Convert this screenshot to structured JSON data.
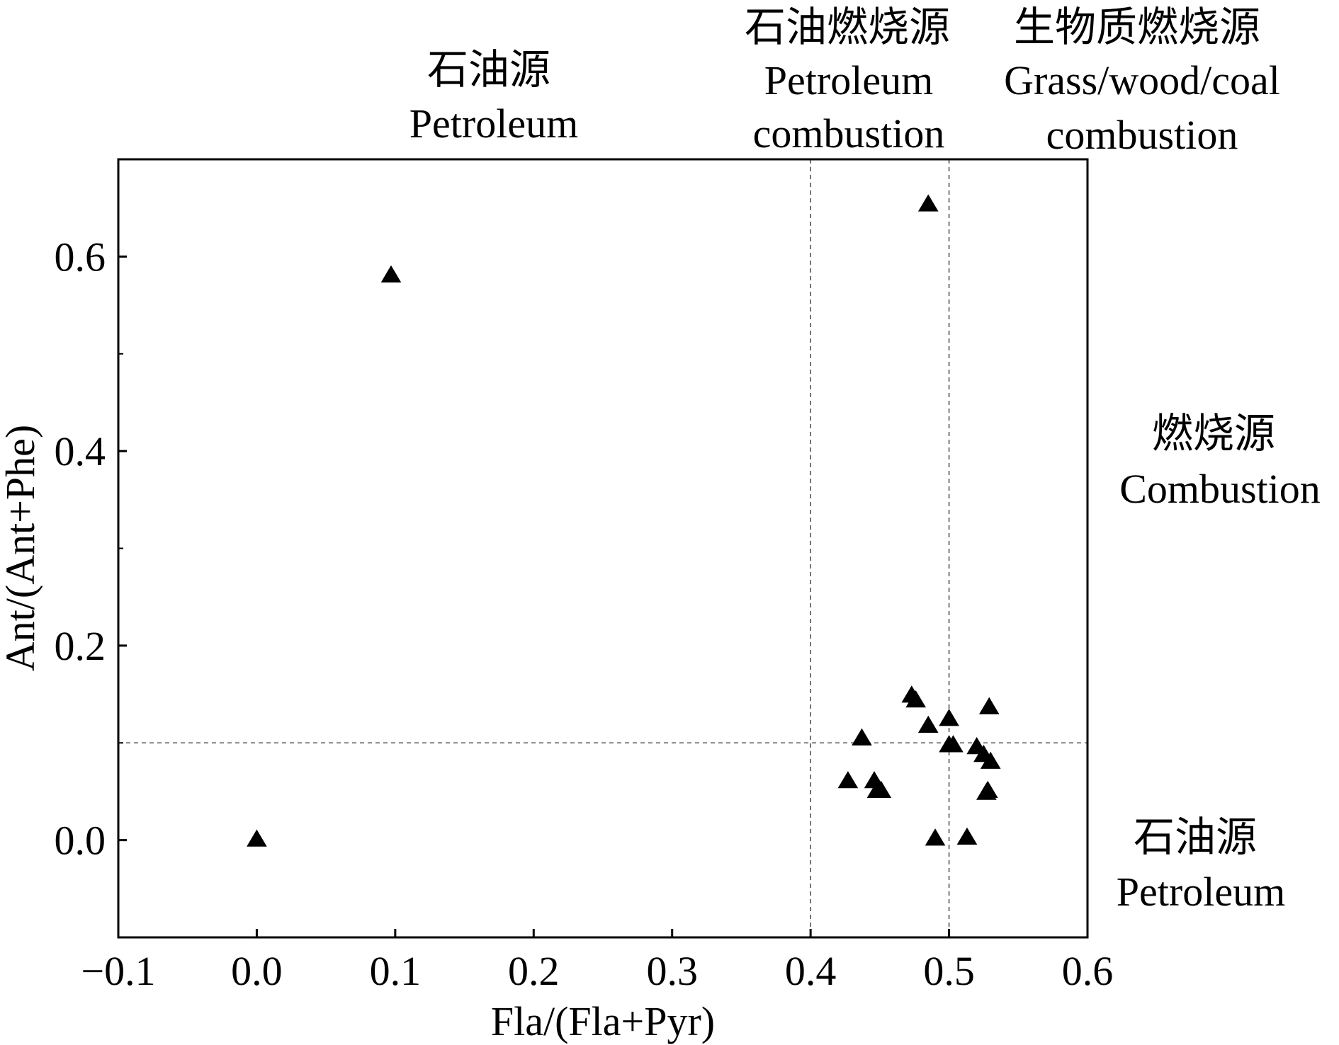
{
  "chart_data": {
    "type": "scatter",
    "xlabel": "Fla/(Fla+Pyr)",
    "ylabel": "Ant/(Ant+Phe)",
    "xlim": [
      -0.1,
      0.6
    ],
    "ylim": [
      -0.1,
      0.7
    ],
    "x_ticks": [
      -0.1,
      0.0,
      0.1,
      0.2,
      0.3,
      0.4,
      0.5,
      0.6
    ],
    "x_tick_labels": [
      "−0.1",
      "0.0",
      "0.1",
      "0.2",
      "0.3",
      "0.4",
      "0.5",
      "0.6"
    ],
    "y_ticks": [
      0.0,
      0.2,
      0.4,
      0.6
    ],
    "y_tick_labels": [
      "0.0",
      "0.2",
      "0.4",
      "0.6"
    ],
    "y_minor_ticks": [
      0.1,
      0.3,
      0.5
    ],
    "grid": false,
    "marker": "filled-triangle",
    "marker_color": "#000000",
    "reference_lines": [
      {
        "axis": "x",
        "value": 0.4,
        "style": "dashed"
      },
      {
        "axis": "x",
        "value": 0.5,
        "style": "dashed"
      },
      {
        "axis": "y",
        "value": 0.1,
        "style": "dashed"
      }
    ],
    "series": [
      {
        "points": [
          {
            "x": 0.0,
            "y": 0.0
          },
          {
            "x": 0.097,
            "y": 0.58
          },
          {
            "x": 0.485,
            "y": 0.653
          },
          {
            "x": 0.427,
            "y": 0.06
          },
          {
            "x": 0.437,
            "y": 0.104
          },
          {
            "x": 0.446,
            "y": 0.06
          },
          {
            "x": 0.448,
            "y": 0.05
          },
          {
            "x": 0.451,
            "y": 0.05
          },
          {
            "x": 0.473,
            "y": 0.148
          },
          {
            "x": 0.476,
            "y": 0.143
          },
          {
            "x": 0.485,
            "y": 0.117
          },
          {
            "x": 0.49,
            "y": 0.001
          },
          {
            "x": 0.5,
            "y": 0.124
          },
          {
            "x": 0.5,
            "y": 0.097
          },
          {
            "x": 0.503,
            "y": 0.097
          },
          {
            "x": 0.513,
            "y": 0.002
          },
          {
            "x": 0.52,
            "y": 0.095
          },
          {
            "x": 0.525,
            "y": 0.087
          },
          {
            "x": 0.527,
            "y": 0.048
          },
          {
            "x": 0.528,
            "y": 0.05
          },
          {
            "x": 0.529,
            "y": 0.136
          },
          {
            "x": 0.53,
            "y": 0.08
          }
        ]
      }
    ],
    "annotations": {
      "top_left": [
        "石油源",
        "Petroleum"
      ],
      "top_middle": [
        "石油燃烧源",
        "Petroleum",
        "combustion"
      ],
      "top_right": [
        "生物质燃烧源",
        "Grass/wood/coal",
        "combustion"
      ],
      "right_upper": [
        "燃烧源",
        "Combustion"
      ],
      "right_lower": [
        "石油源",
        "Petroleum"
      ]
    }
  }
}
